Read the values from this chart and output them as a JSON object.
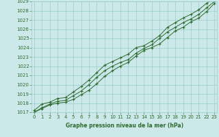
{
  "x": [
    0,
    1,
    2,
    3,
    4,
    5,
    6,
    7,
    8,
    9,
    10,
    11,
    12,
    13,
    14,
    15,
    16,
    17,
    18,
    19,
    20,
    21,
    22,
    23
  ],
  "line_high": [
    1017.2,
    1017.9,
    1018.1,
    1018.5,
    1018.6,
    1019.2,
    1019.8,
    1020.5,
    1021.3,
    1022.1,
    1022.5,
    1022.9,
    1023.3,
    1024.0,
    1024.2,
    1024.7,
    1025.3,
    1026.2,
    1026.7,
    1027.2,
    1027.6,
    1028.1,
    1028.8,
    1029.3
  ],
  "line_mid": [
    1017.0,
    1017.5,
    1017.9,
    1018.2,
    1018.3,
    1018.8,
    1019.3,
    1020.0,
    1020.8,
    1021.5,
    1022.0,
    1022.4,
    1022.7,
    1023.4,
    1023.9,
    1024.3,
    1025.0,
    1025.7,
    1026.2,
    1026.7,
    1027.1,
    1027.6,
    1028.3,
    1029.0
  ],
  "line_low": [
    1017.0,
    1017.4,
    1017.8,
    1018.0,
    1018.1,
    1018.4,
    1018.9,
    1019.4,
    1020.1,
    1020.9,
    1021.5,
    1022.0,
    1022.4,
    1023.1,
    1023.7,
    1024.0,
    1024.4,
    1025.1,
    1025.8,
    1026.2,
    1026.8,
    1027.2,
    1027.9,
    1028.8
  ],
  "ylim_min": 1017,
  "ylim_max": 1029,
  "yticks": [
    1017,
    1018,
    1019,
    1020,
    1021,
    1022,
    1023,
    1024,
    1025,
    1026,
    1027,
    1028,
    1029
  ],
  "xticks": [
    0,
    1,
    2,
    3,
    4,
    5,
    6,
    7,
    8,
    9,
    10,
    11,
    12,
    13,
    14,
    15,
    16,
    17,
    18,
    19,
    20,
    21,
    22,
    23
  ],
  "xlabel": "Graphe pression niveau de la mer (hPa)",
  "line_color": "#2d6a2d",
  "bg_color": "#cce8e8",
  "grid_color": "#99cccc",
  "tick_color": "#2d6a2d",
  "marker": "+",
  "marker_size": 3.0,
  "marker_lw": 0.8,
  "linewidth": 0.7,
  "tick_fontsize": 5.0,
  "xlabel_fontsize": 5.5
}
